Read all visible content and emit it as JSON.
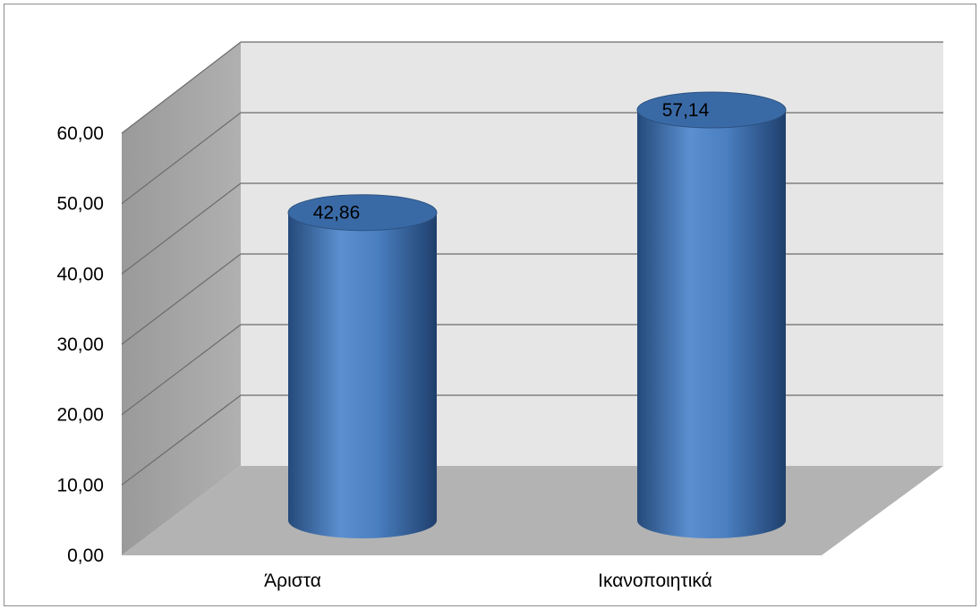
{
  "chart_data": {
    "type": "bar",
    "style": "3d-cylinder",
    "categories": [
      "Άριστα",
      "Ικανοποιητικά"
    ],
    "values": [
      42.86,
      57.14
    ],
    "data_labels": [
      "42,86",
      "57,14"
    ],
    "ylim": [
      0,
      60
    ],
    "yticks": [
      0,
      10,
      20,
      30,
      40,
      50,
      60
    ],
    "ytick_labels": [
      "0,00",
      "10,00",
      "20,00",
      "30,00",
      "40,00",
      "50,00",
      "60,00"
    ],
    "grid": true,
    "legend": "none",
    "title": "",
    "xlabel": "",
    "ylabel": ""
  },
  "colors": {
    "bar": "#4f81bd",
    "bar_dark": "#2f5788",
    "bar_top": "#3a6aa6",
    "back_wall": "#e6e6e6",
    "side_wall": "#a6a6a6",
    "floor": "#b3b3b3",
    "grid": "#6b6b6b"
  }
}
